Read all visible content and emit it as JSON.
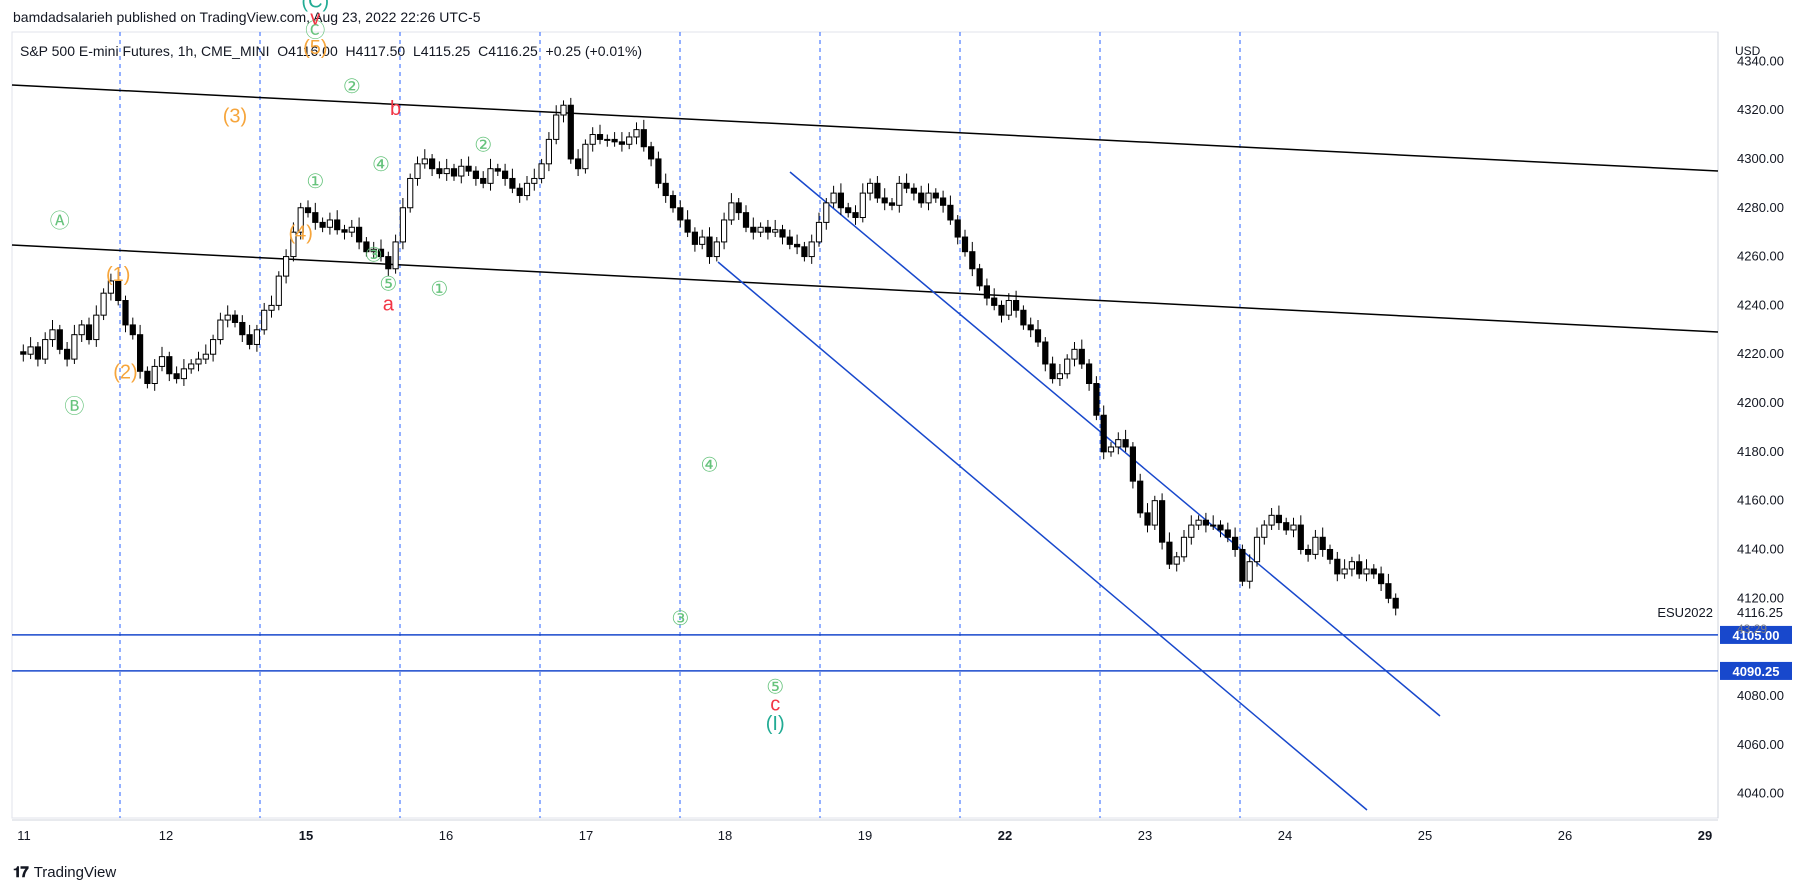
{
  "header": {
    "published": "bamdadsalarieh published on TradingView.com, Aug 23, 2022 22:26 UTC-5"
  },
  "legend": {
    "text": "S&P 500 E-mini Futures, 1h, CME_MINI  O4116.00  H4117.50  L4115.25  C4116.25  +0.25 (+0.01%)"
  },
  "footer": {
    "brand": "TradingView",
    "logo": "tradingview-logo-icon"
  },
  "colors": {
    "up": "#ffffff",
    "down": "#000000",
    "channel": "#1848cc",
    "hline": "#1848cc",
    "wave_green": "#66c37c",
    "wave_orange": "#f6a53b",
    "wave_red": "#f23645",
    "wave_teal": "#22ab94",
    "session": "#2962ff"
  },
  "chart_data": {
    "type": "candlestick",
    "symbol": "ESU2022",
    "timeframe": "1h",
    "currency": "USD",
    "y_axis": {
      "ticks": [
        4340,
        4320,
        4300,
        4280,
        4260,
        4240,
        4220,
        4200,
        4180,
        4160,
        4140,
        4120,
        4080,
        4060,
        4040
      ],
      "range": [
        4030,
        4352
      ]
    },
    "x_axis": {
      "ticks": [
        {
          "label": "11",
          "bold": false
        },
        {
          "label": "12",
          "bold": false
        },
        {
          "label": "15",
          "bold": true
        },
        {
          "label": "16",
          "bold": false
        },
        {
          "label": "17",
          "bold": false
        },
        {
          "label": "18",
          "bold": false
        },
        {
          "label": "19",
          "bold": false
        },
        {
          "label": "22",
          "bold": true
        },
        {
          "label": "23",
          "bold": false
        },
        {
          "label": "24",
          "bold": false
        },
        {
          "label": "25",
          "bold": false
        },
        {
          "label": "26",
          "bold": false
        },
        {
          "label": "29",
          "bold": true
        }
      ]
    },
    "last_price": {
      "symbol": "ESU2022",
      "value": "4116.25",
      "countdown": "43:29"
    },
    "horizontal_levels": [
      {
        "label": "4105.00",
        "value": 4105
      },
      {
        "label": "4090.25",
        "value": 4090.25
      }
    ],
    "price_path": [
      4221,
      4220,
      4223,
      4218,
      4226,
      4230,
      4222,
      4218,
      4228,
      4232,
      4226,
      4236,
      4245,
      4250,
      4242,
      4232,
      4228,
      4213,
      4208,
      4215,
      4219,
      4212,
      4210,
      4214,
      4216,
      4218,
      4220,
      4226,
      4234,
      4236,
      4233,
      4228,
      4224,
      4230,
      4238,
      4240,
      4252,
      4260,
      4270,
      4280,
      4278,
      4274,
      4272,
      4275,
      4271,
      4270,
      4272,
      4266,
      4262,
      4263,
      4260,
      4255,
      4266,
      4280,
      4292,
      4298,
      4300,
      4296,
      4294,
      4296,
      4293,
      4297,
      4295,
      4292,
      4290,
      4296,
      4295,
      4292,
      4288,
      4285,
      4290,
      4292,
      4298,
      4308,
      4318,
      4322,
      4300,
      4296,
      4306,
      4310,
      4308,
      4308,
      4307,
      4306,
      4309,
      4312,
      4305,
      4300,
      4290,
      4285,
      4280,
      4275,
      4270,
      4265,
      4268,
      4260,
      4266,
      4275,
      4282,
      4278,
      4272,
      4270,
      4272,
      4270,
      4271,
      4268,
      4265,
      4264,
      4260,
      4266,
      4274,
      4282,
      4286,
      4280,
      4278,
      4276,
      4286,
      4290,
      4284,
      4282,
      4281,
      4290,
      4288,
      4286,
      4282,
      4286,
      4284,
      4281,
      4275,
      4268,
      4262,
      4255,
      4248,
      4243,
      4240,
      4236,
      4242,
      4238,
      4232,
      4230,
      4225,
      4216,
      4210,
      4212,
      4218,
      4222,
      4216,
      4208,
      4195,
      4180,
      4182,
      4185,
      4182,
      4168,
      4155,
      4150,
      4160,
      4143,
      4134,
      4137,
      4145,
      4150,
      4152,
      4150,
      4150,
      4148,
      4145,
      4140,
      4127,
      4135,
      4145,
      4150,
      4154,
      4151,
      4148,
      4150,
      4140,
      4138,
      4145,
      4140,
      4136,
      4130,
      4132,
      4135,
      4130,
      4132,
      4130,
      4126,
      4120,
      4116
    ],
    "annotations": [
      {
        "text": "Ⓐ",
        "color": "green",
        "price": 4272,
        "bar": 6
      },
      {
        "text": "Ⓑ",
        "color": "green",
        "price": 4196,
        "bar": 8
      },
      {
        "text": "(1)",
        "color": "orange",
        "price": 4250,
        "bar": 14
      },
      {
        "text": "(2)",
        "color": "orange",
        "price": 4210,
        "bar": 15
      },
      {
        "text": "(3)",
        "color": "orange",
        "price": 4315,
        "bar": 30
      },
      {
        "text": "(4)",
        "color": "orange",
        "price": 4267,
        "bar": 39
      },
      {
        "text": "(5)",
        "color": "orange",
        "price": 4343,
        "bar": 41
      },
      {
        "text": "Ⓒ",
        "color": "green",
        "price": 4350,
        "bar": 41
      },
      {
        "text": "v",
        "color": "red",
        "price": 4355,
        "bar": 41
      },
      {
        "text": "(C)",
        "color": "teal",
        "price": 4362,
        "bar": 41
      },
      {
        "text": "①",
        "color": "green",
        "price": 4288,
        "bar": 41
      },
      {
        "text": "②",
        "color": "green",
        "price": 4327,
        "bar": 46
      },
      {
        "text": "④",
        "color": "green",
        "price": 4295,
        "bar": 50
      },
      {
        "text": "③",
        "color": "green",
        "price": 4258,
        "bar": 49
      },
      {
        "text": "⑤",
        "color": "green",
        "price": 4246,
        "bar": 51
      },
      {
        "text": "a",
        "color": "red",
        "price": 4238,
        "bar": 51
      },
      {
        "text": "b",
        "color": "red",
        "price": 4318,
        "bar": 52
      },
      {
        "text": "①",
        "color": "green",
        "price": 4244,
        "bar": 58
      },
      {
        "text": "②",
        "color": "green",
        "price": 4303,
        "bar": 64
      },
      {
        "text": "③",
        "color": "green",
        "price": 4109,
        "bar": 91
      },
      {
        "text": "④",
        "color": "green",
        "price": 4172,
        "bar": 95
      },
      {
        "text": "⑤",
        "color": "green",
        "price": 4081,
        "bar": 104
      },
      {
        "text": "c",
        "color": "red",
        "price": 4074,
        "bar": 104
      },
      {
        "text": "(I)",
        "color": "teal",
        "price": 4066,
        "bar": 104
      }
    ]
  }
}
